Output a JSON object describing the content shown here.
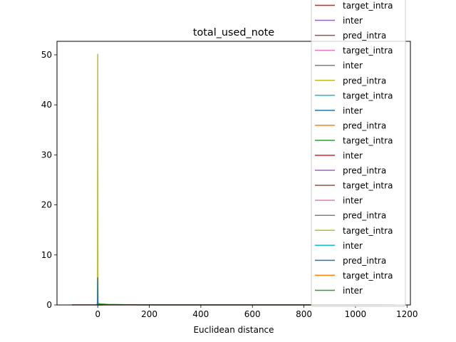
{
  "chart_data": {
    "type": "line",
    "title": "total_used_note",
    "xlabel": "Euclidean distance",
    "ylabel": "",
    "xlim": [
      -158,
      1213
    ],
    "ylim": [
      0,
      52.7
    ],
    "xticks": [
      0,
      200,
      400,
      600,
      800,
      1000,
      1200
    ],
    "yticks": [
      0,
      10,
      20,
      30,
      40,
      50
    ],
    "grid": false,
    "legend_position": "top-right",
    "legend": [
      {
        "label": "target_intra",
        "color": "#d62728"
      },
      {
        "label": "inter",
        "color": "#9467bd"
      },
      {
        "label": "pred_intra",
        "color": "#8c564b"
      },
      {
        "label": "target_intra",
        "color": "#e377c2"
      },
      {
        "label": "inter",
        "color": "#7f7f7f"
      },
      {
        "label": "pred_intra",
        "color": "#bcbd22"
      },
      {
        "label": "target_intra",
        "color": "#17becf"
      },
      {
        "label": "inter",
        "color": "#1f77b4"
      },
      {
        "label": "pred_intra",
        "color": "#ff7f0e"
      },
      {
        "label": "target_intra",
        "color": "#2ca02c"
      },
      {
        "label": "inter",
        "color": "#d62728"
      },
      {
        "label": "pred_intra",
        "color": "#9467bd"
      },
      {
        "label": "target_intra",
        "color": "#8c564b"
      },
      {
        "label": "inter",
        "color": "#e377c2"
      },
      {
        "label": "pred_intra",
        "color": "#7f7f7f"
      },
      {
        "label": "target_intra",
        "color": "#bcbd22"
      },
      {
        "label": "inter",
        "color": "#17becf"
      },
      {
        "label": "pred_intra",
        "color": "#1f77b4"
      },
      {
        "label": "target_intra",
        "color": "#ff7f0e"
      },
      {
        "label": "inter",
        "color": "#2ca02c"
      }
    ],
    "series": [
      {
        "color": "#bcbd22",
        "x": [
          -3,
          -1,
          0,
          1,
          3,
          6,
          20
        ],
        "y": [
          0,
          0.5,
          50.2,
          0.5,
          0,
          0,
          0
        ]
      },
      {
        "color": "#1f77b4",
        "x": [
          -3,
          -1,
          0,
          1,
          3,
          8
        ],
        "y": [
          0,
          0.4,
          5.5,
          0.3,
          0,
          0
        ]
      },
      {
        "color": "#2ca02c",
        "x": [
          0,
          10,
          40,
          100,
          300,
          1000
        ],
        "y": [
          0.3,
          0.2,
          0.1,
          0.05,
          0.02,
          0.01
        ]
      },
      {
        "color": "#d62728",
        "x": [
          -100,
          100,
          500,
          1100
        ],
        "y": [
          0.02,
          0.02,
          0.02,
          0.02
        ]
      },
      {
        "color": "#2ca02c",
        "x": [
          150,
          600,
          1150
        ],
        "y": [
          0.01,
          0.01,
          0.01
        ]
      }
    ]
  }
}
